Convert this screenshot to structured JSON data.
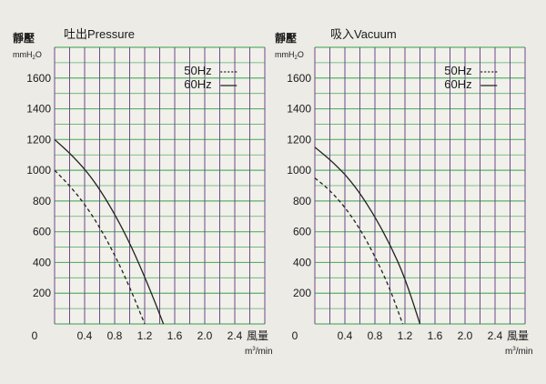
{
  "charts": [
    {
      "y_unit_main": "靜壓",
      "y_unit_sub": "mmH",
      "y_unit_subscript": "2",
      "y_unit_tail": "O",
      "title": "吐出Pressure",
      "x_label_char": "風量",
      "x_unit": "m",
      "x_unit_sup": "3",
      "x_unit_tail": "/min"
    },
    {
      "y_unit_main": "靜壓",
      "y_unit_sub": "mmH",
      "y_unit_subscript": "2",
      "y_unit_tail": "O",
      "title": "吸入Vacuum",
      "x_label_char": "風量",
      "x_unit": "m",
      "x_unit_sup": "3",
      "x_unit_tail": "/min"
    }
  ],
  "colors": {
    "grid_horizontal": "#58b06a",
    "grid_vertical": "#6b4a8a",
    "curve": "#222222",
    "background": "#ecebe6"
  },
  "chart_data": [
    {
      "type": "line",
      "title": "吐出Pressure",
      "xlabel": "m3/min",
      "ylabel": "mmH2O",
      "x_ticks": [
        "0",
        "0.4",
        "0.8",
        "1.2",
        "1.6",
        "2.0",
        "2.4"
      ],
      "y_ticks": [
        "200",
        "400",
        "600",
        "800",
        "1000",
        "1200",
        "1400",
        "1600"
      ],
      "xlim": [
        0,
        2.8
      ],
      "ylim": [
        0,
        1800
      ],
      "grid": true,
      "legend_position": "top-right",
      "series": [
        {
          "name": "50Hz",
          "style": "dashed",
          "x": [
            0,
            0.2,
            0.4,
            0.6,
            0.8,
            1.0,
            1.2
          ],
          "y": [
            1000,
            900,
            780,
            630,
            450,
            240,
            0
          ]
        },
        {
          "name": "60Hz",
          "style": "solid",
          "x": [
            0,
            0.25,
            0.5,
            0.75,
            1.0,
            1.25,
            1.45
          ],
          "y": [
            1200,
            1090,
            950,
            760,
            530,
            250,
            0
          ]
        }
      ]
    },
    {
      "type": "line",
      "title": "吸入Vacuum",
      "xlabel": "m3/min",
      "ylabel": "mmH2O",
      "x_ticks": [
        "0",
        "0.4",
        "0.8",
        "1.2",
        "1.6",
        "2.0",
        "2.4"
      ],
      "y_ticks": [
        "200",
        "400",
        "600",
        "800",
        "1000",
        "1200",
        "1400",
        "1600"
      ],
      "xlim": [
        0,
        2.8
      ],
      "ylim": [
        0,
        1800
      ],
      "grid": true,
      "legend_position": "top-right",
      "series": [
        {
          "name": "50Hz",
          "style": "dashed",
          "x": [
            0,
            0.2,
            0.4,
            0.6,
            0.8,
            1.0,
            1.17
          ],
          "y": [
            950,
            870,
            760,
            620,
            440,
            230,
            0
          ]
        },
        {
          "name": "60Hz",
          "style": "solid",
          "x": [
            0,
            0.25,
            0.5,
            0.75,
            1.0,
            1.2,
            1.4
          ],
          "y": [
            1150,
            1050,
            920,
            740,
            520,
            300,
            0
          ]
        }
      ]
    }
  ]
}
